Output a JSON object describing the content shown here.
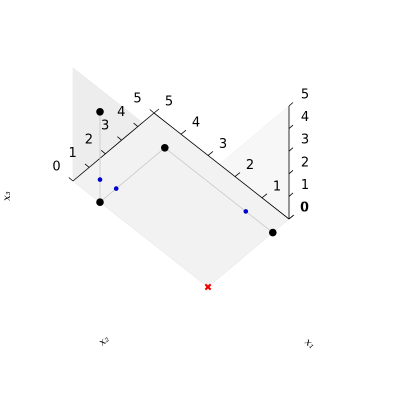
{
  "chart_data": {
    "type": "scatter3d",
    "title": "",
    "xlabel": "x₁",
    "ylabel": "x₂",
    "zlabel": "x₃",
    "xlim": [
      0,
      5
    ],
    "ylim": [
      0,
      5
    ],
    "zlim": [
      0,
      5
    ],
    "xticks": [
      "0",
      "1",
      "2",
      "3",
      "4",
      "5"
    ],
    "yticks": [
      "0",
      "1",
      "2",
      "3",
      "4",
      "5"
    ],
    "zticks": [
      "0",
      "1",
      "2",
      "3",
      "4",
      "5"
    ],
    "grid": false,
    "series": [
      {
        "marker": "circle",
        "color": "#000000",
        "points": [
          [
            0,
            4,
            4
          ],
          [
            0,
            4,
            0
          ],
          [
            4,
            4,
            0
          ],
          [
            4,
            0,
            0
          ]
        ]
      },
      {
        "marker": "circle-small",
        "color": "#0000cc",
        "points": [
          [
            0,
            4,
            1
          ],
          [
            1,
            4,
            0
          ],
          [
            4,
            1,
            0
          ]
        ]
      },
      {
        "marker": "x",
        "color": "#ee0000",
        "points": [
          [
            0,
            0,
            0
          ]
        ]
      }
    ],
    "segments": [
      [
        [
          0,
          4,
          4
        ],
        [
          0,
          4,
          1
        ],
        [
          0,
          4,
          0
        ]
      ],
      [
        [
          0,
          4,
          0
        ],
        [
          1,
          4,
          0
        ],
        [
          4,
          4,
          0
        ]
      ],
      [
        [
          4,
          4,
          0
        ],
        [
          4,
          1,
          0
        ],
        [
          4,
          0,
          0
        ]
      ]
    ]
  }
}
